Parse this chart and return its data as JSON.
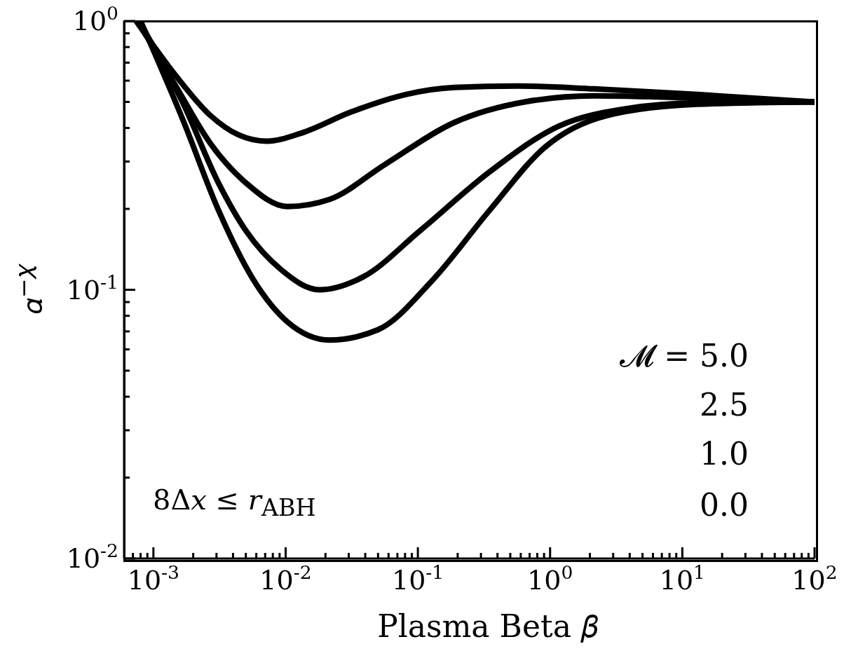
{
  "chart_data": {
    "type": "line",
    "xlabel": "Plasma Beta   𝛽",
    "ylabel": "𝛼$^{−𝜒}$",
    "log": "xy",
    "marker": "none",
    "line_style": "solid",
    "annotations": [
      "8Δ𝑥 ≤ 𝑟$_{ABH}$",
      "𝓜 = 5.0",
      "2.5",
      "1.0",
      "0.0"
    ],
    "xlim": [
      0.0006,
      100
    ],
    "ylim": [
      0.01,
      1
    ],
    "xticks": [
      {
        "value": 0.0007,
        "label": null
      },
      {
        "value": 0.0008,
        "label": null
      },
      {
        "value": 0.0009,
        "label": null
      },
      {
        "value": 0.001,
        "label": "10$^{-3}$"
      },
      {
        "value": 0.002,
        "label": null
      },
      {
        "value": 0.003,
        "label": null
      },
      {
        "value": 0.004,
        "label": null
      },
      {
        "value": 0.005,
        "label": null
      },
      {
        "value": 0.006,
        "label": null
      },
      {
        "value": 0.007,
        "label": null
      },
      {
        "value": 0.008,
        "label": null
      },
      {
        "value": 0.009,
        "label": null
      },
      {
        "value": 0.01,
        "label": "10$^{-2}$"
      },
      {
        "value": 0.02,
        "label": null
      },
      {
        "value": 0.03,
        "label": null
      },
      {
        "value": 0.04,
        "label": null
      },
      {
        "value": 0.05,
        "label": null
      },
      {
        "value": 0.06,
        "label": null
      },
      {
        "value": 0.07,
        "label": null
      },
      {
        "value": 0.08,
        "label": null
      },
      {
        "value": 0.09,
        "label": null
      },
      {
        "value": 0.1,
        "label": "10$^{-1}$"
      },
      {
        "value": 0.2,
        "label": null
      },
      {
        "value": 0.3,
        "label": null
      },
      {
        "value": 0.4,
        "label": null
      },
      {
        "value": 0.5,
        "label": null
      },
      {
        "value": 0.6,
        "label": null
      },
      {
        "value": 0.7,
        "label": null
      },
      {
        "value": 0.8,
        "label": null
      },
      {
        "value": 0.9,
        "label": null
      },
      {
        "value": 1,
        "label": "10$^{0}$"
      },
      {
        "value": 2,
        "label": null
      },
      {
        "value": 3,
        "label": null
      },
      {
        "value": 4,
        "label": null
      },
      {
        "value": 5,
        "label": null
      },
      {
        "value": 6,
        "label": null
      },
      {
        "value": 7,
        "label": null
      },
      {
        "value": 8,
        "label": null
      },
      {
        "value": 9,
        "label": null
      },
      {
        "value": 10,
        "label": "10$^{1}$"
      },
      {
        "value": 20,
        "label": null
      },
      {
        "value": 30,
        "label": null
      },
      {
        "value": 40,
        "label": null
      },
      {
        "value": 50,
        "label": null
      },
      {
        "value": 60,
        "label": null
      },
      {
        "value": 70,
        "label": null
      },
      {
        "value": 80,
        "label": null
      },
      {
        "value": 90,
        "label": null
      },
      {
        "value": 100,
        "label": "10$^{2}$"
      }
    ],
    "yticks": [
      {
        "value": 0.01,
        "label": "10$^{-2}$"
      },
      {
        "value": 0.02,
        "label": null
      },
      {
        "value": 0.03,
        "label": null
      },
      {
        "value": 0.04,
        "label": null
      },
      {
        "value": 0.05,
        "label": null
      },
      {
        "value": 0.06,
        "label": null
      },
      {
        "value": 0.07,
        "label": null
      },
      {
        "value": 0.08,
        "label": null
      },
      {
        "value": 0.09,
        "label": null
      },
      {
        "value": 0.1,
        "label": "10$^{-1}$"
      },
      {
        "value": 0.2,
        "label": null
      },
      {
        "value": 0.3,
        "label": null
      },
      {
        "value": 0.4,
        "label": null
      },
      {
        "value": 0.5,
        "label": null
      },
      {
        "value": 0.6,
        "label": null
      },
      {
        "value": 0.7,
        "label": null
      },
      {
        "value": 0.8,
        "label": null
      },
      {
        "value": 0.9,
        "label": null
      },
      {
        "value": 1,
        "label": "10$^{0}$"
      }
    ],
    "series": [
      {
        "color": "#000000",
        "x": [
          0.00074,
          0.0015,
          0.0027,
          0.0044,
          0.0072,
          0.0132,
          0.031,
          0.081,
          0.19,
          0.57,
          2.15,
          13,
          100
        ],
        "values": [
          1,
          0.62,
          0.445,
          0.377,
          0.357,
          0.383,
          0.458,
          0.533,
          0.566,
          0.573,
          0.559,
          0.533,
          0.5
        ]
      },
      {
        "color": "#000000",
        "x": [
          0.00076,
          0.0015,
          0.0027,
          0.005,
          0.0103,
          0.0215,
          0.056,
          0.19,
          0.64,
          2.15,
          13,
          100
        ],
        "values": [
          1,
          0.565,
          0.35,
          0.25,
          0.204,
          0.217,
          0.292,
          0.42,
          0.5,
          0.527,
          0.517,
          0.5
        ]
      },
      {
        "color": "#000000",
        "x": [
          0.00078,
          0.0017,
          0.0031,
          0.005,
          0.0092,
          0.018,
          0.039,
          0.104,
          0.35,
          1.16,
          3.9,
          13,
          100
        ],
        "values": [
          1,
          0.487,
          0.25,
          0.166,
          0.119,
          0.1,
          0.112,
          0.166,
          0.275,
          0.406,
          0.473,
          0.496,
          0.5
        ]
      },
      {
        "color": "#000000",
        "x": [
          0.0008,
          0.0017,
          0.0031,
          0.0057,
          0.0103,
          0.0215,
          0.05,
          0.13,
          0.35,
          0.92,
          2.7,
          13,
          100
        ],
        "values": [
          1,
          0.42,
          0.198,
          0.109,
          0.076,
          0.065,
          0.071,
          0.109,
          0.198,
          0.34,
          0.445,
          0.49,
          0.5
        ]
      }
    ]
  }
}
